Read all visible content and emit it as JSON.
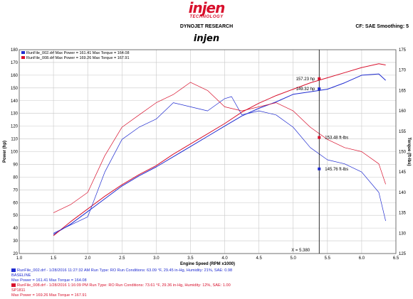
{
  "header": {
    "logo_word": "injen",
    "logo_sub": "TECHNOLOGY",
    "report_title": "DYNOJET RESEARCH",
    "settings_text": "CF: SAE  Smoothing: 5",
    "chart_title": "injen"
  },
  "colors": {
    "run1": "#1f2bd0",
    "run2": "#d8102c",
    "grid": "#c8c8c8"
  },
  "chart_data": {
    "type": "line",
    "x_label": "Engine Speed (RPM x1000)",
    "y_left_label": "Power (hp)",
    "y_right_label": "Torque (ft-lbs)",
    "x_ticks": [
      "1.0",
      "1.5",
      "2.0",
      "2.5",
      "3.0",
      "3.5",
      "4.0",
      "4.5",
      "5.0",
      "5.5",
      "6.0",
      "6.5"
    ],
    "y_left_ticks": [
      "20",
      "30",
      "40",
      "50",
      "60",
      "70",
      "80",
      "90",
      "100",
      "110",
      "120",
      "130",
      "140",
      "150",
      "160",
      "170",
      "180"
    ],
    "y_right_ticks": [
      "125",
      "130",
      "135",
      "140",
      "145",
      "150",
      "155",
      "160",
      "165",
      "170",
      "175"
    ],
    "xlim": [
      1.0,
      6.5
    ],
    "y_left_lim": [
      20,
      180
    ],
    "y_right_lim": [
      125,
      175
    ],
    "grid": true,
    "top_legend": [
      {
        "text": "RunFile_002.drf Max Power = 161.41   Max Torque = 164.08",
        "color": "#1f2bd0"
      },
      {
        "text": "RunFile_008.drf Max Power = 169.26   Max Torque = 167.91",
        "color": "#d8102c"
      }
    ],
    "series": [
      {
        "name": "RunFile_002.drf Power",
        "color": "#1f2bd0",
        "axis": "left",
        "x": [
          1.5,
          1.75,
          2.0,
          2.25,
          2.5,
          2.75,
          3.0,
          3.25,
          3.5,
          3.75,
          4.0,
          4.25,
          4.5,
          4.75,
          5.0,
          5.25,
          5.5,
          5.75,
          6.0,
          6.25,
          6.35
        ],
        "y": [
          35,
          43,
          53,
          63,
          73,
          81,
          88,
          96,
          104,
          112,
          120,
          128,
          134,
          139,
          145,
          147,
          149,
          154,
          160,
          161,
          156
        ]
      },
      {
        "name": "RunFile_008.drf Power",
        "color": "#d8102c",
        "axis": "left",
        "x": [
          1.5,
          1.75,
          2.0,
          2.25,
          2.5,
          2.75,
          3.0,
          3.25,
          3.5,
          3.75,
          4.0,
          4.25,
          4.5,
          4.75,
          5.0,
          5.25,
          5.5,
          5.75,
          6.0,
          6.25,
          6.35
        ],
        "y": [
          34,
          45,
          55,
          65,
          74,
          82,
          89,
          98,
          106,
          114,
          122,
          131,
          138,
          144,
          149,
          154,
          158,
          162,
          166,
          169,
          168
        ]
      },
      {
        "name": "RunFile_002.drf Torque",
        "color": "#1f2bd0",
        "axis": "right",
        "x": [
          1.5,
          1.75,
          2.0,
          2.25,
          2.5,
          2.75,
          3.0,
          3.25,
          3.5,
          3.75,
          4.0,
          4.1,
          4.25,
          4.5,
          4.75,
          5.0,
          5.25,
          5.5,
          5.75,
          6.0,
          6.25,
          6.35
        ],
        "y": [
          130,
          132,
          134,
          145,
          153,
          156,
          158,
          162,
          161,
          160,
          163,
          163.5,
          159,
          160,
          159,
          156,
          151,
          148,
          147,
          145,
          140,
          133
        ]
      },
      {
        "name": "RunFile_008.drf Torque",
        "color": "#d8102c",
        "axis": "right",
        "x": [
          1.5,
          1.75,
          2.0,
          2.25,
          2.5,
          2.75,
          3.0,
          3.25,
          3.5,
          3.75,
          4.0,
          4.25,
          4.5,
          4.75,
          5.0,
          5.25,
          5.5,
          5.75,
          6.0,
          6.25,
          6.35
        ],
        "y": [
          135,
          137,
          140,
          149,
          156,
          159,
          162,
          164,
          167,
          165,
          161,
          160,
          161,
          162,
          160,
          156,
          153,
          151,
          150,
          147,
          142
        ]
      }
    ],
    "cursor": {
      "x": 5.38,
      "label": "X = 5.380",
      "readouts": [
        {
          "text": "157.23 hp",
          "color": "#d8102c",
          "value": 157.23,
          "axis": "left"
        },
        {
          "text": "149.32 hp",
          "color": "#1f2bd0",
          "value": 149.32,
          "axis": "left"
        },
        {
          "text": "153.48 ft-lbs",
          "color": "#d8102c",
          "value": 153.48,
          "axis": "right"
        },
        {
          "text": "145.76 ft-lbs",
          "color": "#1f2bd0",
          "value": 145.76,
          "axis": "right"
        }
      ]
    }
  },
  "footer": {
    "run1": {
      "line1": "RunFile_002.drf - 1/28/2016 11:27:32 AM  Run Type: RO  Run Conditions: 63.09 °F, 29.45 in-Hg,  Humidity:  21%, SAE: 0.98",
      "line2": "BASELINE",
      "line3": "Max Power = 161.41   Max Torque = 164.08"
    },
    "run2": {
      "line1": "RunFile_008.drf - 1/28/2016 1:16:09 PM  Run Type: RO  Run Conditions: 73.61 °F, 29.36 in-Hg,  Humidity:  12%, SAE: 1.00",
      "line2": "SP1811",
      "line3": "Max Power = 169.26   Max Torque = 167.91"
    }
  }
}
